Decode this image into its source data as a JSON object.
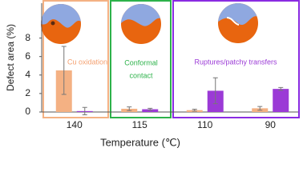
{
  "chart_data": {
    "type": "bar",
    "x_label": "Temperature (℃)",
    "y_label": "Defect area (%)",
    "categories": [
      "140",
      "115",
      "110",
      "90"
    ],
    "series": [
      {
        "color": "#f4b183",
        "values": [
          4.5,
          0.35,
          0.2,
          0.4
        ],
        "errors": [
          2.6,
          0.2,
          0.1,
          0.2
        ]
      },
      {
        "color": "#9b3ad6",
        "values": [
          0.1,
          0.3,
          2.3,
          2.5
        ],
        "errors": [
          0.4,
          0.1,
          1.4,
          0.15
        ]
      }
    ],
    "ylim": [
      0,
      11.6
    ],
    "yticks": [
      0,
      2,
      4,
      6,
      8
    ],
    "annotations": [
      "Cu oxidation",
      "Conformal",
      "contact",
      "Ruptures/patchy transfers"
    ]
  }
}
